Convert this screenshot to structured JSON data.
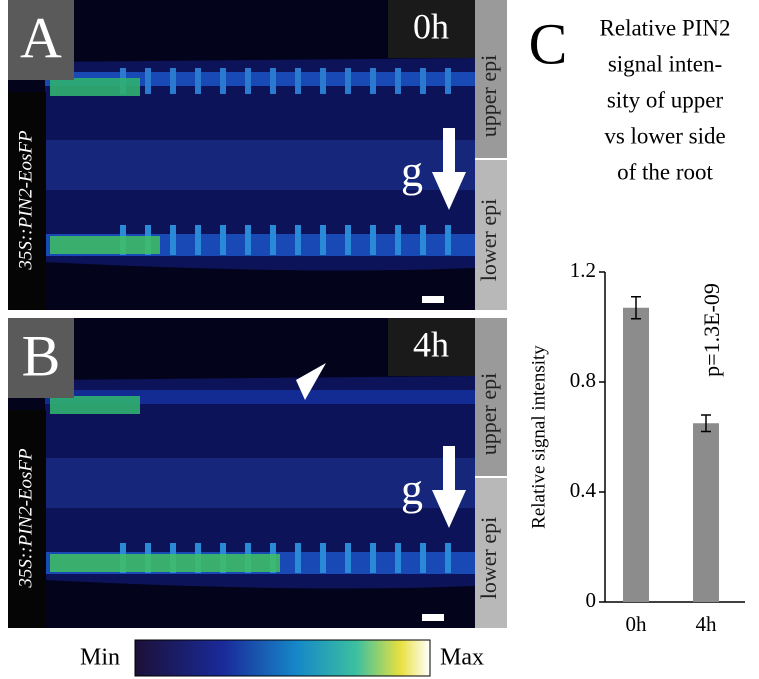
{
  "panels": [
    {
      "label": "A",
      "time": "0h",
      "construct": "35S::PIN2-EosFP",
      "upper": "upper epi",
      "lower": "lower epi",
      "gravity": "g"
    },
    {
      "label": "B",
      "time": "4h",
      "construct": "35S::PIN2-EosFP",
      "upper": "upper epi",
      "lower": "lower epi",
      "gravity": "g"
    }
  ],
  "colorbar": {
    "min": "Min",
    "max": "Max"
  },
  "chart_data": {
    "type": "bar",
    "panel_label": "C",
    "title_lines": [
      "Relative PIN2",
      "signal inten-",
      "sity of upper",
      "vs lower side",
      "of the root"
    ],
    "y_label": "Relative signal intensity",
    "annotation": "p=1.3E-09",
    "categories": [
      "0h",
      "4h"
    ],
    "values": [
      1.07,
      0.65
    ],
    "errors": [
      0.04,
      0.03
    ],
    "color": "#8c8c8c",
    "ylim": [
      0,
      1.2
    ],
    "yticks": [
      0,
      0.4,
      0.8,
      1.2
    ]
  }
}
